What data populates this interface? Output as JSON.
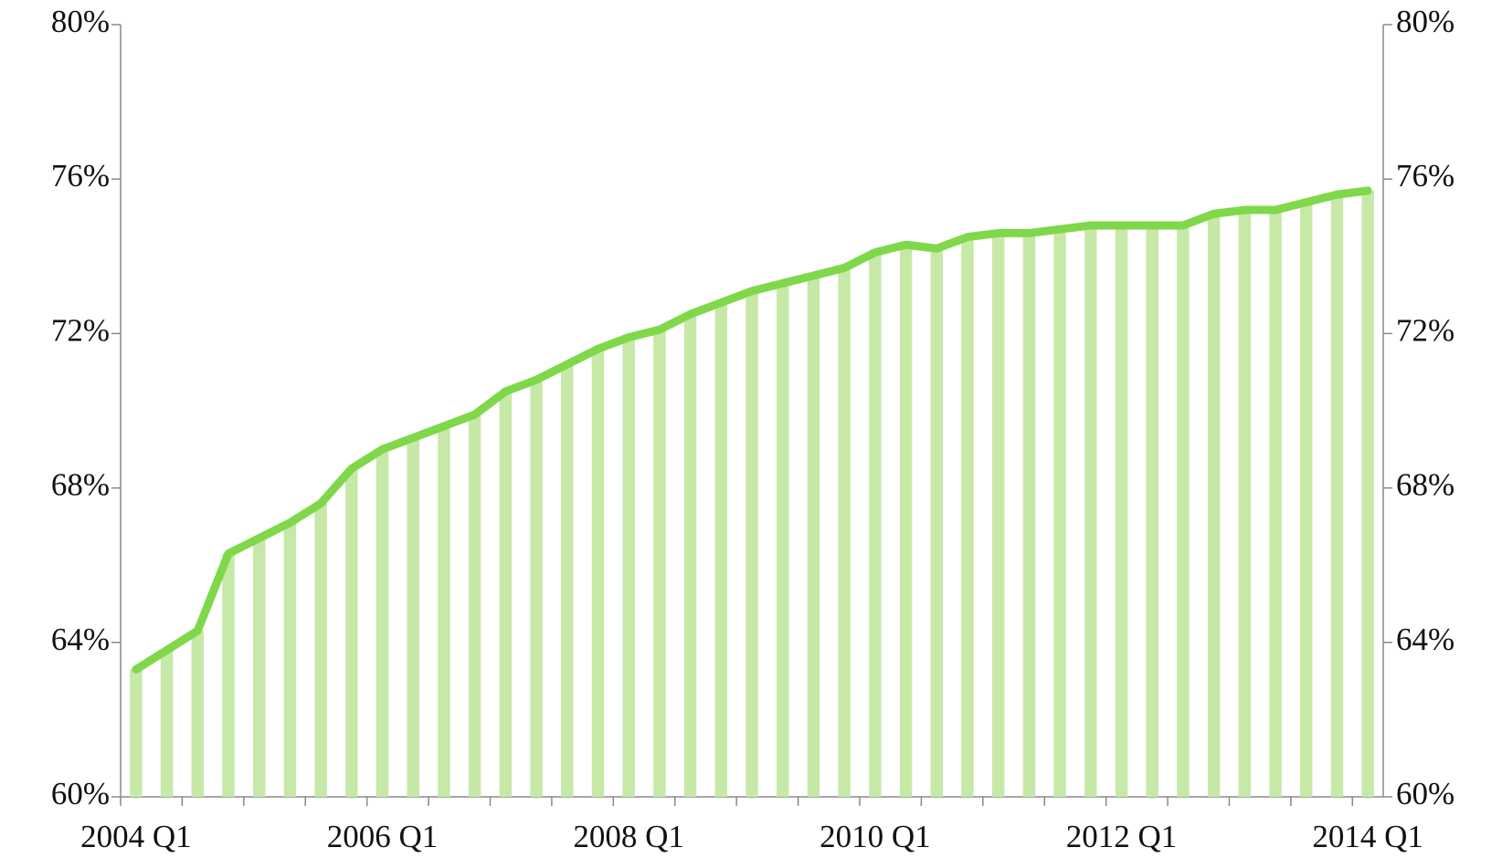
{
  "chart_data": {
    "type": "bar",
    "categories": [
      "2004 Q1",
      null,
      null,
      null,
      null,
      null,
      null,
      null,
      "2006 Q1",
      null,
      null,
      null,
      null,
      null,
      null,
      null,
      "2008 Q1",
      null,
      null,
      null,
      null,
      null,
      null,
      null,
      "2010 Q1",
      null,
      null,
      null,
      null,
      null,
      null,
      null,
      "2012 Q1",
      null,
      null,
      null,
      null,
      null,
      null,
      null,
      "2014 Q1"
    ],
    "series": [
      {
        "values": [
          63.3,
          63.8,
          64.3,
          66.3,
          66.7,
          67.1,
          67.6,
          68.5,
          69.0,
          69.3,
          69.6,
          69.9,
          70.5,
          70.8,
          71.2,
          71.6,
          71.9,
          72.1,
          72.5,
          72.8,
          73.1,
          73.3,
          73.5,
          73.7,
          74.1,
          74.3,
          74.2,
          74.5,
          74.6,
          74.6,
          74.7,
          74.8,
          74.8,
          74.8,
          74.8,
          75.1,
          75.2,
          75.2,
          75.4,
          75.6,
          75.7
        ],
        "color": "#c6e9a7",
        "line_color": "#7fd84a"
      }
    ],
    "ylim": [
      60,
      80
    ],
    "yticks": [
      {
        "value": 60,
        "label": "60%"
      },
      {
        "value": 64,
        "label": "64%"
      },
      {
        "value": 68,
        "label": "68%"
      },
      {
        "value": 72,
        "label": "72%"
      },
      {
        "value": 76,
        "label": "76%"
      },
      {
        "value": 80,
        "label": "80%"
      }
    ],
    "y2lim": [
      60,
      80
    ],
    "y2ticks": [
      {
        "value": 60,
        "label": "60%"
      },
      {
        "value": 64,
        "label": "64%"
      },
      {
        "value": 68,
        "label": "68%"
      },
      {
        "value": 72,
        "label": "72%"
      },
      {
        "value": 76,
        "label": "76%"
      },
      {
        "value": 80,
        "label": "80%"
      }
    ],
    "grid": false
  }
}
